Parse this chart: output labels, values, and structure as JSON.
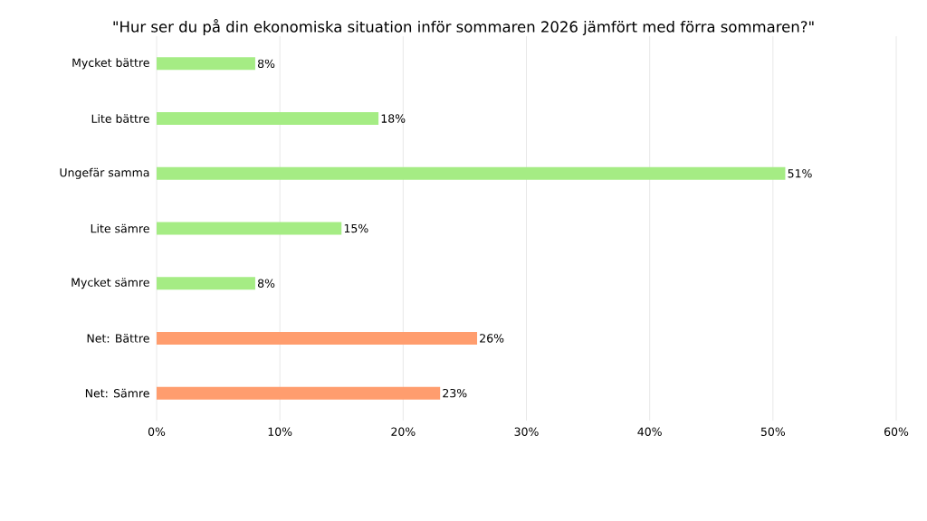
{
  "chart_data": {
    "type": "bar",
    "orientation": "horizontal",
    "title": "\"Hur ser du på din ekonomiska situation inför sommaren 2026 jämfört med förra sommaren?\"",
    "categories": [
      "Mycket bättre",
      "Lite bättre",
      "Ungefär samma",
      "Lite sämre",
      "Mycket sämre",
      "Net: Bättre",
      "Net: Sämre"
    ],
    "values": [
      8,
      18,
      51,
      15,
      8,
      26,
      23
    ],
    "colors": [
      "#a5ec84",
      "#a5ec84",
      "#a5ec84",
      "#a5ec84",
      "#a5ec84",
      "#ff9d6e",
      "#ff9d6e"
    ],
    "value_labels": [
      "8%",
      "18%",
      "51%",
      "15%",
      "8%",
      "26%",
      "23%"
    ],
    "xlim": [
      0,
      60
    ],
    "xticks": [
      {
        "value": 0,
        "label": "0%"
      },
      {
        "value": 10,
        "label": "10%"
      },
      {
        "value": 20,
        "label": "20%"
      },
      {
        "value": 30,
        "label": "30%"
      },
      {
        "value": 40,
        "label": "40%"
      },
      {
        "value": 50,
        "label": "50%"
      },
      {
        "value": 60,
        "label": "60%"
      }
    ],
    "grid": "x"
  }
}
